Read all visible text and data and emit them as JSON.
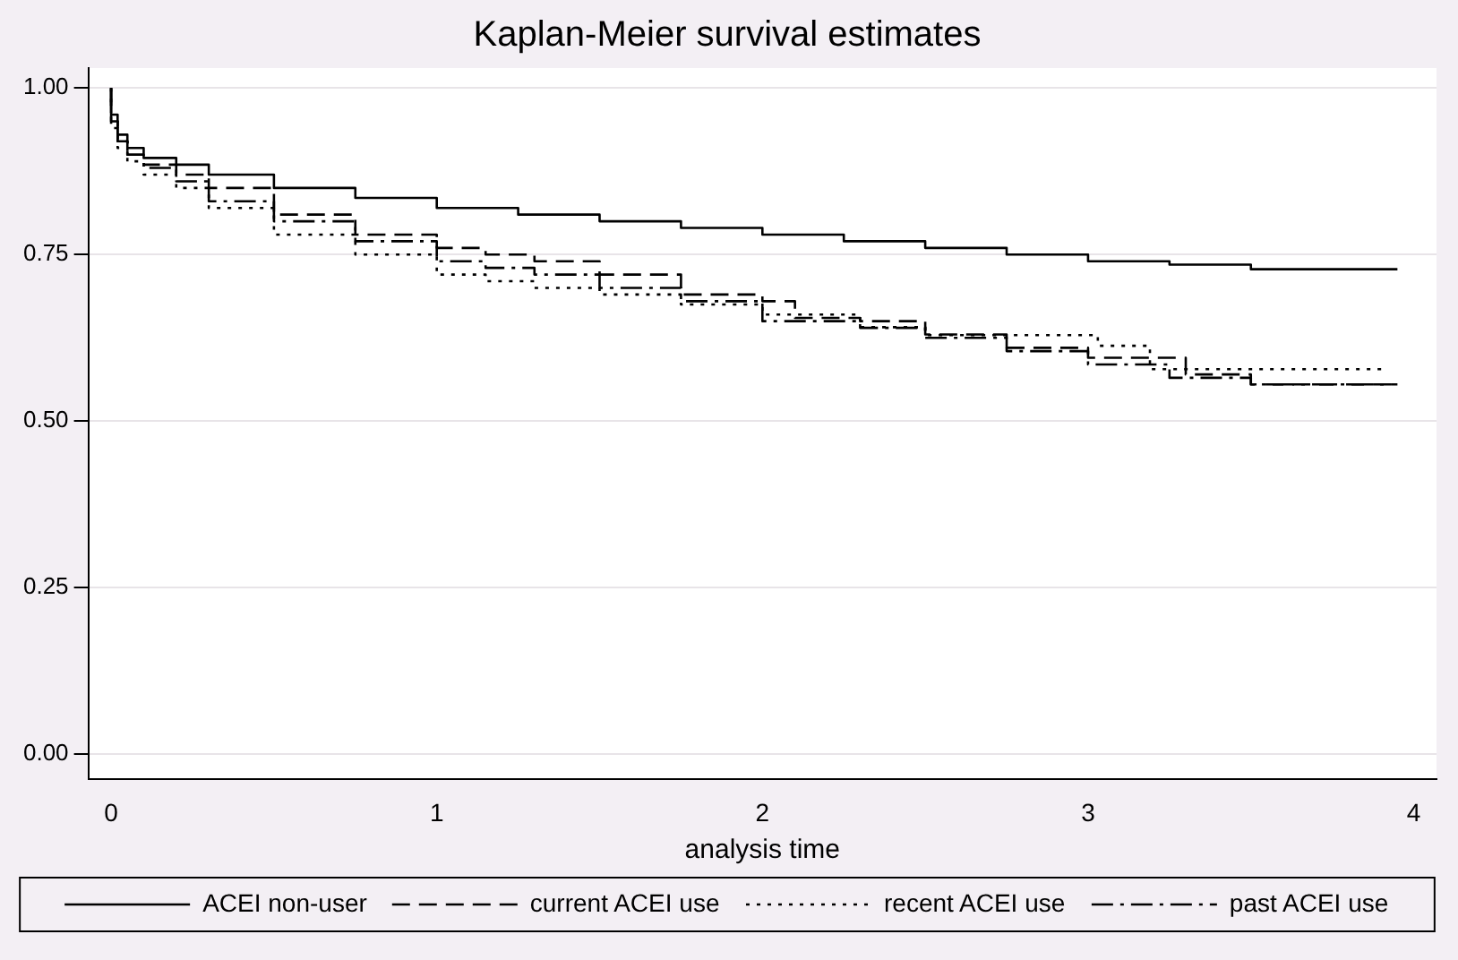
{
  "chart_data": {
    "type": "step",
    "title": "Kaplan-Meier survival estimates",
    "xlabel": "analysis time",
    "xlim": [
      -0.07,
      4.07
    ],
    "xticks": [
      0,
      1,
      2,
      3,
      4
    ],
    "ylim": [
      -0.038,
      1.03
    ],
    "yticks": [
      {
        "value": 0,
        "label": "0.00"
      },
      {
        "value": 0.25,
        "label": "0.25"
      },
      {
        "value": 0.5,
        "label": "0.50"
      },
      {
        "value": 0.75,
        "label": "0.75"
      },
      {
        "value": 1,
        "label": "1.00"
      }
    ],
    "grid": "y",
    "legend": "bottom",
    "marker": "none",
    "series": [
      {
        "name": "ACEI non-user",
        "color": "#000000",
        "line_style": "solid",
        "x": [
          0,
          0.02,
          0.05,
          0.1,
          0.2,
          0.3,
          0.5,
          0.75,
          1,
          1.25,
          1.5,
          1.75,
          2,
          2.25,
          2.5,
          2.75,
          3,
          3.25,
          3.5,
          3.7,
          3.95
        ],
        "values": [
          1,
          0.96,
          0.93,
          0.91,
          0.895,
          0.885,
          0.87,
          0.85,
          0.835,
          0.82,
          0.81,
          0.8,
          0.79,
          0.78,
          0.77,
          0.76,
          0.75,
          0.74,
          0.735,
          0.728,
          0.728
        ]
      },
      {
        "name": "current ACEI use",
        "color": "#000000",
        "line_style": "dashed",
        "x": [
          0,
          0.02,
          0.05,
          0.1,
          0.2,
          0.3,
          0.5,
          0.75,
          1,
          1.15,
          1.3,
          1.5,
          1.75,
          2,
          2.1,
          2.3,
          2.5,
          2.75,
          3,
          3.3,
          3.5,
          3.52,
          3.93
        ],
        "values": [
          1,
          0.95,
          0.92,
          0.9,
          0.885,
          0.87,
          0.85,
          0.81,
          0.78,
          0.76,
          0.75,
          0.74,
          0.72,
          0.69,
          0.68,
          0.655,
          0.65,
          0.63,
          0.61,
          0.595,
          0.57,
          0.555,
          0.555
        ]
      },
      {
        "name": "recent ACEI use",
        "color": "#000000",
        "line_style": "dotted",
        "x": [
          0,
          0.02,
          0.05,
          0.1,
          0.2,
          0.3,
          0.5,
          0.75,
          1,
          1.15,
          1.3,
          1.5,
          1.75,
          2,
          2.3,
          2.5,
          3.03,
          3.19,
          3.45,
          3.91
        ],
        "values": [
          1,
          0.94,
          0.91,
          0.89,
          0.87,
          0.85,
          0.82,
          0.78,
          0.75,
          0.72,
          0.71,
          0.7,
          0.69,
          0.675,
          0.66,
          0.641,
          0.629,
          0.613,
          0.578,
          0.578
        ]
      },
      {
        "name": "past ACEI use",
        "color": "#000000",
        "line_style": "dashdot",
        "x": [
          0,
          0.02,
          0.05,
          0.1,
          0.2,
          0.3,
          0.5,
          0.75,
          1,
          1.15,
          1.3,
          1.5,
          1.75,
          2,
          2.3,
          2.5,
          2.75,
          3,
          3.25,
          3.5,
          3.52,
          3.95
        ],
        "values": [
          1,
          0.95,
          0.92,
          0.9,
          0.88,
          0.86,
          0.83,
          0.8,
          0.77,
          0.74,
          0.73,
          0.72,
          0.7,
          0.68,
          0.65,
          0.64,
          0.625,
          0.605,
          0.585,
          0.565,
          0.555,
          0.555
        ]
      }
    ]
  }
}
